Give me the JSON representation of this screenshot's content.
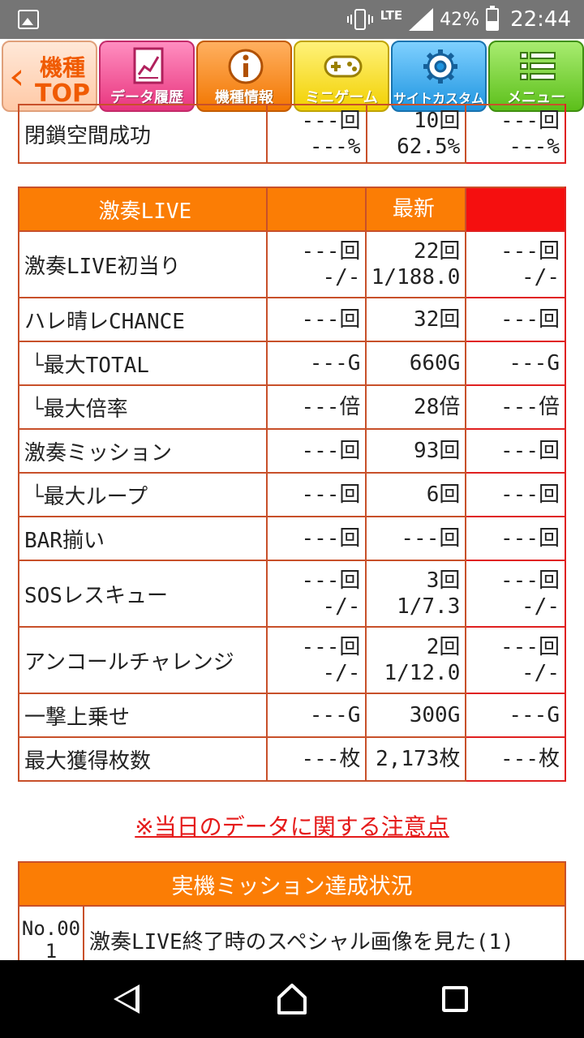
{
  "status_bar": {
    "lte": "LTE",
    "battery": "42%",
    "time": "22:44"
  },
  "nav": {
    "back": {
      "line1": "機種",
      "line2": "TOP"
    },
    "buttons": [
      {
        "label": "データ履歴",
        "icon": "chart-icon"
      },
      {
        "label": "機種情報",
        "icon": "info-icon"
      },
      {
        "label": "ミニゲーム",
        "icon": "gamepad-icon"
      },
      {
        "label": "サイトカスタム",
        "icon": "gear-icon"
      },
      {
        "label": "メニュー",
        "icon": "menu-icon"
      }
    ]
  },
  "top_row": {
    "label": "閉鎖空間成功",
    "c2a": "---回",
    "c2b": "---%",
    "c3a": "10回",
    "c3b": "62.5%",
    "c4a": "---回",
    "c4b": "---%"
  },
  "live_table": {
    "header": [
      "激奏LIVE",
      "",
      "最新",
      ""
    ],
    "rows": [
      {
        "label": "激奏LIVE初当り",
        "c2a": "---回",
        "c2b": "-/-",
        "c3a": "22回",
        "c3b": "1/188.0",
        "c4a": "---回",
        "c4b": "-/-"
      },
      {
        "label": "ハレ晴レCHANCE",
        "c2": "---回",
        "c3": "32回",
        "c4": "---回"
      },
      {
        "label": "最大TOTAL",
        "prefix": "└",
        "c2": "---G",
        "c3": "660G",
        "c4": "---G"
      },
      {
        "label": "最大倍率",
        "prefix": "└",
        "c2": "---倍",
        "c3": "28倍",
        "c4": "---倍"
      },
      {
        "label": "激奏ミッション",
        "c2": "---回",
        "c3": "93回",
        "c4": "---回"
      },
      {
        "label": "最大ループ",
        "prefix": "└",
        "c2": "---回",
        "c3": "6回",
        "c4": "---回"
      },
      {
        "label": "BAR揃い",
        "c2": "---回",
        "c3": "---回",
        "c4": "---回"
      },
      {
        "label": "SOSレスキュー",
        "c2a": "---回",
        "c2b": "-/-",
        "c3a": "3回",
        "c3b": "1/7.3",
        "c4a": "---回",
        "c4b": "-/-"
      },
      {
        "label": "アンコールチャレンジ",
        "c2a": "---回",
        "c2b": "-/-",
        "c3a": "2回",
        "c3b": "1/12.0",
        "c4a": "---回",
        "c4b": "-/-"
      },
      {
        "label": "一撃上乗せ",
        "c2": "---G",
        "c3": "300G",
        "c4": "---G"
      },
      {
        "label": "最大獲得枚数",
        "c2": "---枚",
        "c3": "2,173枚",
        "c4": "---枚"
      }
    ]
  },
  "notice": "※当日のデータに関する注意点",
  "mission": {
    "title": "実機ミッション達成状況",
    "rows": [
      {
        "no_line1": "No.00",
        "no_line2": "1",
        "text": "激奏LIVE終了時のスペシャル画像を見た(1)"
      }
    ]
  },
  "colors": {
    "header_orange": "#fb7d05",
    "header_red": "#f50f0f",
    "notice_red": "#e51a1a"
  }
}
